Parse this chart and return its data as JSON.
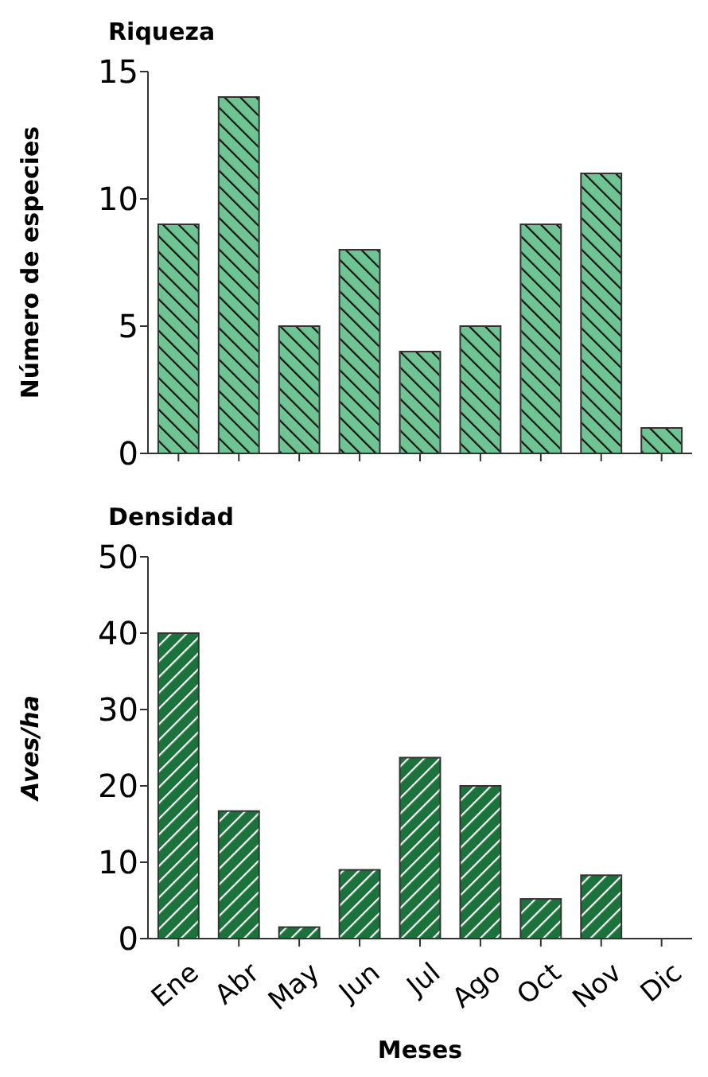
{
  "chart_data": [
    {
      "type": "bar",
      "title": "Riqueza",
      "ylabel": "Número de especies",
      "categories": [
        null,
        null,
        null,
        null,
        null,
        null,
        null,
        null,
        null
      ],
      "values": [
        9,
        14,
        5,
        8,
        4,
        5,
        9,
        11,
        1
      ],
      "color": "#6fc493",
      "ylim": [
        0,
        15
      ],
      "yticks": [
        0,
        5,
        10,
        15
      ]
    },
    {
      "type": "bar",
      "title": "Densidad",
      "xlabel": "Meses",
      "ylabel": "Aves/ha",
      "categories": [
        "Ene",
        "Abr",
        "May",
        "Jun",
        "Jul",
        "Ago",
        "Oct",
        "Nov",
        "Dic"
      ],
      "values": [
        40,
        16.7,
        1.5,
        9,
        23.7,
        20,
        5.2,
        8.3,
        0
      ],
      "color": "#1b733b",
      "ylim": [
        0,
        50
      ],
      "yticks": [
        0,
        10,
        20,
        30,
        40,
        50
      ]
    }
  ]
}
